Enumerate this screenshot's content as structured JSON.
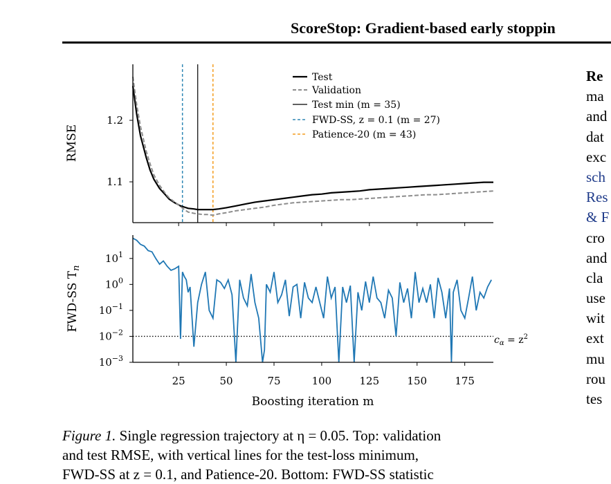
{
  "header": {
    "running_title": "ScoreStop: Gradient-based early stoppin"
  },
  "figure": {
    "top_panel": {
      "ylabel": "RMSE",
      "yticks": [
        "1.2",
        "1.1"
      ],
      "legend": {
        "test": "Test",
        "validation": "Validation",
        "test_min": "Test min (m = 35)",
        "fwd_ss": "FWD-SS, z = 0.1 (m = 27)",
        "patience": "Patience-20 (m = 43)"
      }
    },
    "bottom_panel": {
      "ylabel": "FWD-SS T",
      "ylabel_sub": "n",
      "yticks": [
        {
          "base": "10",
          "exp": "1"
        },
        {
          "base": "10",
          "exp": "0"
        },
        {
          "base": "10",
          "exp": "−1"
        },
        {
          "base": "10",
          "exp": "−2"
        },
        {
          "base": "10",
          "exp": "−3"
        }
      ],
      "threshold_label": "c",
      "threshold_label_sub": "α",
      "threshold_label_rest": " = z",
      "threshold_label_sup": "2"
    },
    "xlabel": "Boosting iteration m",
    "xticks": [
      "25",
      "50",
      "75",
      "100",
      "125",
      "150",
      "175"
    ]
  },
  "caption": {
    "label": "Figure 1.",
    "line1_text": " Single regression trajectory at η = 0.05. Top: validation",
    "line2": "and test RMSE, with vertical lines for the test-loss minimum,",
    "line3": "FWD-SS at z = 0.1, and Patience-20. Bottom: FWD-SS statistic"
  },
  "body_column": {
    "lines": [
      "Re",
      "ma",
      "and",
      "dat",
      "exc",
      "sch",
      "Res",
      "& F",
      "cro",
      "and",
      "cla",
      "use",
      "wit",
      "ext",
      "mu",
      "rou",
      "tes"
    ]
  },
  "colors": {
    "test": "#000000",
    "validation": "#8c8c8c",
    "fwd_ss": "#2e86b4",
    "patience": "#f39c1d",
    "statistic": "#1f77b4"
  },
  "chart_data": [
    {
      "type": "line",
      "ylabel": "RMSE",
      "xlim": [
        1,
        190
      ],
      "ylim": [
        1.035,
        1.29
      ],
      "grid": false,
      "legend_position": "top-right",
      "series": [
        {
          "name": "Test",
          "x": [
            1,
            3,
            5,
            8,
            10,
            12,
            15,
            18,
            20,
            23,
            26,
            28,
            30,
            33,
            35,
            38,
            40,
            43,
            46,
            50,
            55,
            60,
            65,
            70,
            75,
            80,
            85,
            90,
            95,
            100,
            105,
            110,
            115,
            120,
            125,
            130,
            135,
            140,
            145,
            150,
            155,
            160,
            165,
            170,
            175,
            180,
            185,
            190
          ],
          "y": [
            1.255,
            1.21,
            1.175,
            1.14,
            1.12,
            1.105,
            1.09,
            1.08,
            1.073,
            1.067,
            1.062,
            1.06,
            1.058,
            1.057,
            1.056,
            1.056,
            1.056,
            1.056,
            1.057,
            1.059,
            1.062,
            1.065,
            1.068,
            1.07,
            1.072,
            1.074,
            1.076,
            1.078,
            1.08,
            1.081,
            1.083,
            1.084,
            1.085,
            1.086,
            1.088,
            1.089,
            1.09,
            1.091,
            1.092,
            1.093,
            1.094,
            1.095,
            1.096,
            1.097,
            1.098,
            1.099,
            1.1,
            1.1
          ]
        },
        {
          "name": "Validation",
          "x": [
            1,
            3,
            5,
            8,
            10,
            12,
            15,
            18,
            20,
            23,
            26,
            28,
            30,
            33,
            35,
            38,
            40,
            43,
            46,
            50,
            55,
            60,
            65,
            70,
            75,
            80,
            85,
            90,
            95,
            100,
            105,
            110,
            115,
            120,
            125,
            130,
            135,
            140,
            145,
            150,
            155,
            160,
            165,
            170,
            175,
            180,
            185,
            190
          ],
          "y": [
            1.27,
            1.225,
            1.19,
            1.15,
            1.13,
            1.112,
            1.095,
            1.082,
            1.075,
            1.068,
            1.061,
            1.056,
            1.052,
            1.05,
            1.049,
            1.048,
            1.048,
            1.047,
            1.049,
            1.051,
            1.054,
            1.056,
            1.058,
            1.06,
            1.063,
            1.065,
            1.067,
            1.068,
            1.069,
            1.07,
            1.071,
            1.072,
            1.072,
            1.073,
            1.074,
            1.075,
            1.076,
            1.077,
            1.078,
            1.079,
            1.08,
            1.08,
            1.081,
            1.082,
            1.083,
            1.084,
            1.085,
            1.086
          ]
        }
      ],
      "vlines": [
        {
          "name": "Test min (m = 35)",
          "x": 35
        },
        {
          "name": "FWD-SS, z = 0.1 (m = 27)",
          "x": 27
        },
        {
          "name": "Patience-20 (m = 43)",
          "x": 43
        }
      ]
    },
    {
      "type": "line",
      "ylabel": "FWD-SS T_n",
      "xlabel": "Boosting iteration m",
      "xlim": [
        1,
        190
      ],
      "ylim_log10": [
        -3,
        1.9
      ],
      "y_scale": "log",
      "grid": false,
      "threshold": {
        "y": 0.01,
        "label": "c_α = z^2"
      },
      "series": [
        {
          "x": [
            1,
            3,
            5,
            7,
            9,
            11,
            13,
            15,
            17,
            19,
            21,
            23,
            25,
            26,
            27,
            28,
            29,
            30,
            31,
            33,
            35,
            37,
            39,
            41,
            43,
            45,
            47,
            49,
            51,
            53,
            55,
            57,
            59,
            61,
            63,
            65,
            67,
            69,
            70,
            71,
            73,
            75,
            77,
            79,
            81,
            83,
            85,
            87,
            89,
            91,
            93,
            95,
            97,
            99,
            101,
            103,
            105,
            107,
            109,
            111,
            113,
            115,
            117,
            119,
            121,
            123,
            125,
            127,
            129,
            131,
            133,
            135,
            137,
            139,
            141,
            143,
            145,
            147,
            149,
            151,
            153,
            155,
            157,
            159,
            161,
            163,
            165,
            167,
            168,
            169,
            171,
            173,
            175,
            177,
            179,
            181,
            183,
            185,
            187,
            189
          ],
          "y": [
            60,
            50,
            35,
            30,
            20,
            18,
            10,
            6,
            8,
            5,
            3.5,
            4,
            5,
            0.008,
            3,
            2,
            1.5,
            0.5,
            0.8,
            0.004,
            0.2,
            1.0,
            3,
            0.1,
            0.05,
            1.5,
            1.2,
            0.7,
            1.5,
            0.4,
            0.0008,
            1.5,
            0.3,
            0.15,
            2.5,
            0.2,
            0.05,
            0.001,
            0.003,
            1.0,
            0.5,
            3,
            0.2,
            0.4,
            1.5,
            0.06,
            0.8,
            1.0,
            0.05,
            1.2,
            0.3,
            0.2,
            0.8,
            0.2,
            0.05,
            2.0,
            0.3,
            0.8,
            0.001,
            0.8,
            0.2,
            0.9,
            0.001,
            0.5,
            0.1,
            1.3,
            0.2,
            2.0,
            0.3,
            0.2,
            0.05,
            0.6,
            0.3,
            0.01,
            1.2,
            0.2,
            0.7,
            0.05,
            3,
            0.2,
            0.7,
            0.2,
            1.0,
            0.05,
            1.8,
            0.5,
            0.05,
            0.7,
            0.0008,
            0.5,
            1.5,
            0.1,
            0.05,
            0.3,
            2,
            0.1,
            0.5,
            0.3,
            0.8,
            1.5
          ]
        }
      ]
    }
  ]
}
